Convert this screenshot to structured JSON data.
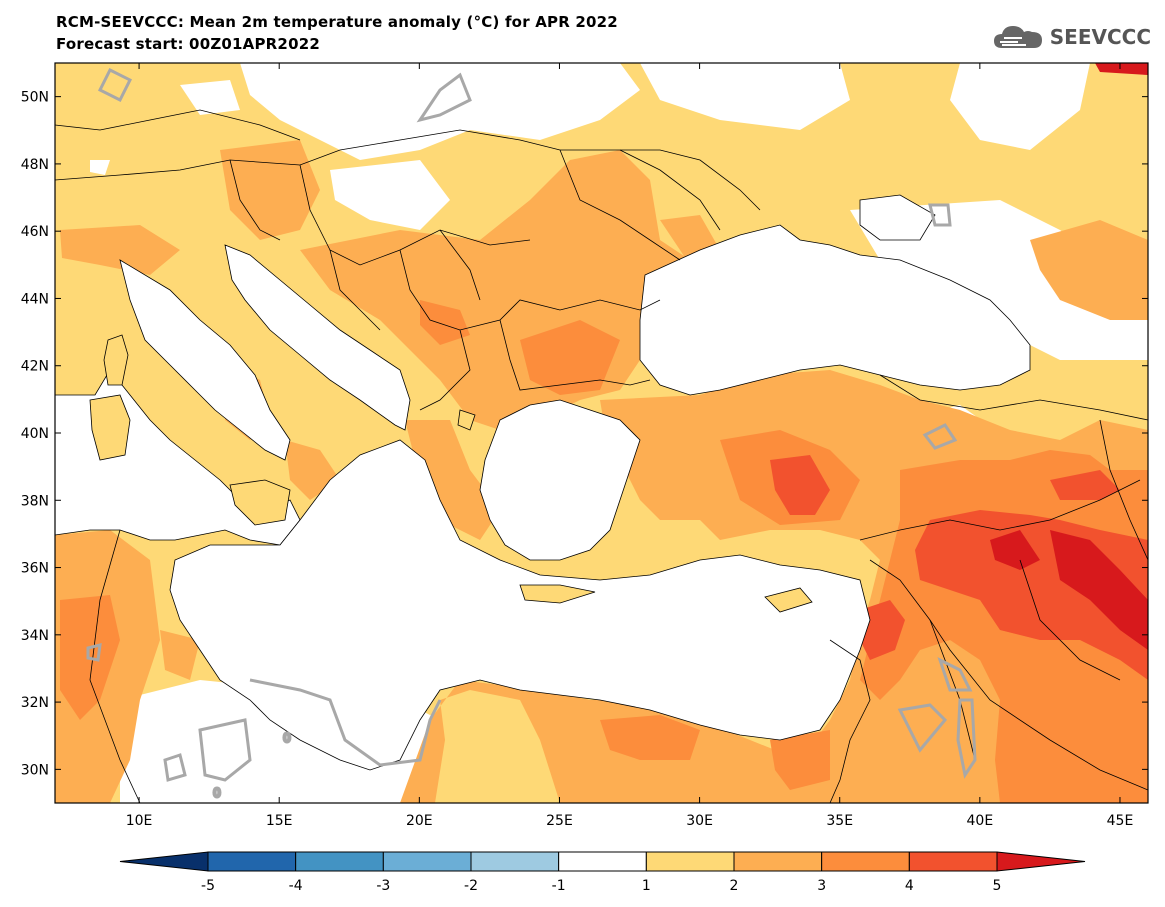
{
  "header": {
    "title": "RCM-SEEVCCC: Mean 2m temperature anomaly (°C) for APR 2022",
    "subtitle": "Forecast start: 00Z01APR2022",
    "logo_text": "SEEVCCC",
    "logo_icon": "cloud-icon"
  },
  "map": {
    "lon_range": [
      7,
      46
    ],
    "lat_range": [
      29,
      51
    ],
    "lon_ticks": [
      {
        "value": 10,
        "label": "10E"
      },
      {
        "value": 15,
        "label": "15E"
      },
      {
        "value": 20,
        "label": "20E"
      },
      {
        "value": 25,
        "label": "25E"
      },
      {
        "value": 30,
        "label": "30E"
      },
      {
        "value": 35,
        "label": "35E"
      },
      {
        "value": 40,
        "label": "40E"
      },
      {
        "value": 45,
        "label": "45E"
      }
    ],
    "lat_ticks": [
      {
        "value": 30,
        "label": "30N"
      },
      {
        "value": 32,
        "label": "32N"
      },
      {
        "value": 34,
        "label": "34N"
      },
      {
        "value": 36,
        "label": "36N"
      },
      {
        "value": 38,
        "label": "38N"
      },
      {
        "value": 40,
        "label": "40N"
      },
      {
        "value": 42,
        "label": "42N"
      },
      {
        "value": 44,
        "label": "44N"
      },
      {
        "value": 46,
        "label": "46N"
      },
      {
        "value": 48,
        "label": "48N"
      },
      {
        "value": 50,
        "label": "50N"
      }
    ],
    "contour_label": "0",
    "colors": {
      "c1_2": "#fed976",
      "c2_3": "#fdae52",
      "c3_4": "#fc8d3c",
      "c4_5": "#f2522e",
      "c5p": "#d7191c",
      "contour": "#a8a8a8"
    }
  },
  "colorbar": {
    "colors": [
      "#08306b",
      "#2166ac",
      "#4393c3",
      "#6baed6",
      "#9ecae1",
      "#ffffff",
      "#fed976",
      "#fdae52",
      "#fc8d3c",
      "#f2522e",
      "#d7191c"
    ],
    "labels": [
      "-5",
      "-4",
      "-3",
      "-2",
      "-1",
      "1",
      "2",
      "3",
      "4",
      "5"
    ]
  }
}
